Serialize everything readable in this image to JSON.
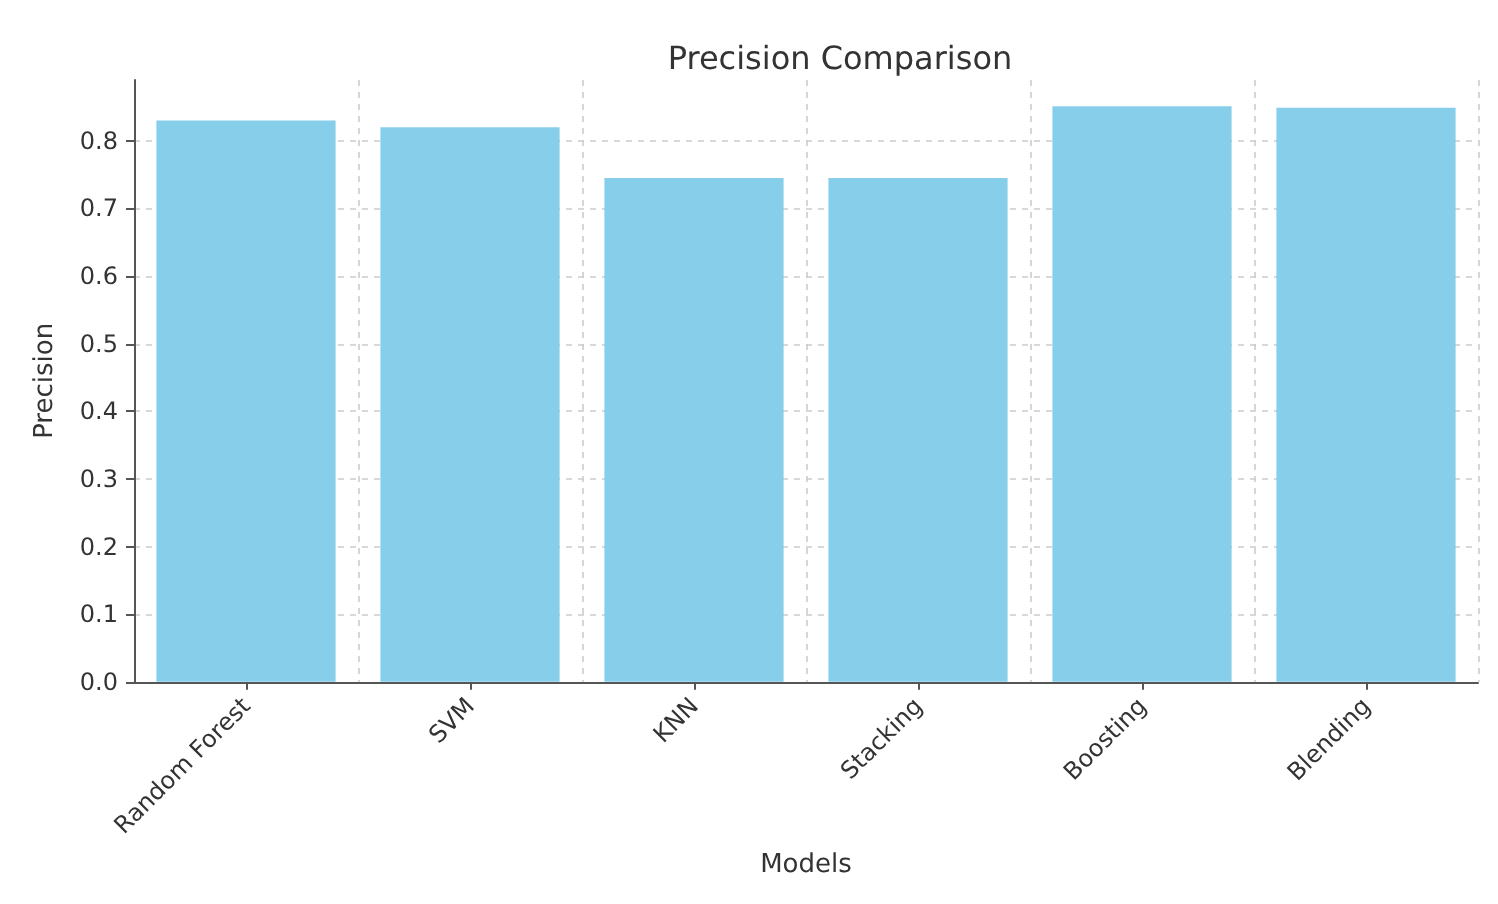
{
  "chart_data": {
    "type": "bar",
    "title": "Precision Comparison",
    "xlabel": "Models",
    "ylabel": "Precision",
    "categories": [
      "Random Forest",
      "SVM",
      "KNN",
      "Stacking",
      "Boosting",
      "Blending"
    ],
    "values": [
      0.83,
      0.82,
      0.745,
      0.745,
      0.851,
      0.849
    ],
    "color": "#87ceeb",
    "ylim": [
      0,
      0.89
    ],
    "yticks": [
      {
        "value": 0,
        "label": "0.0"
      },
      0.1,
      0.2,
      0.3,
      0.4,
      0.5,
      0.6,
      0.7,
      0.8
    ],
    "grid": true
  }
}
